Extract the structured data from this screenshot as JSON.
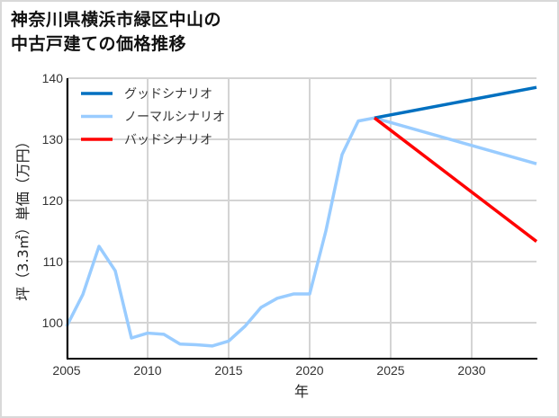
{
  "title_lines": [
    "神奈川県横浜市緑区中山の",
    "中古戸建ての価格推移"
  ],
  "chart_data": {
    "type": "line",
    "title": "神奈川県横浜市緑区中山の中古戸建ての価格推移",
    "xlabel": "年",
    "ylabel": "坪（3.3㎡）単価（万円）",
    "xlim": [
      2005,
      2034
    ],
    "ylim": [
      94.1,
      140
    ],
    "xticks": [
      2005,
      2010,
      2015,
      2020,
      2025,
      2030
    ],
    "yticks": [
      100,
      110,
      120,
      130,
      140
    ],
    "grid": true,
    "legend_position": "upper left",
    "series": [
      {
        "name": "グッドシナリオ",
        "color": "#0070c0",
        "x": [
          2024,
          2034
        ],
        "values": [
          133.5,
          138.5
        ]
      },
      {
        "name": "ノーマルシナリオ",
        "color": "#99ccff",
        "x": [
          2005,
          2006,
          2007,
          2008,
          2009,
          2010,
          2011,
          2012,
          2013,
          2014,
          2015,
          2016,
          2017,
          2018,
          2019,
          2020,
          2021,
          2022,
          2023,
          2024,
          2034
        ],
        "values": [
          99.4,
          104.6,
          112.5,
          108.5,
          97.5,
          98.3,
          98.1,
          96.5,
          96.4,
          96.2,
          97.0,
          99.4,
          102.5,
          104.0,
          104.7,
          104.7,
          115.0,
          127.5,
          133.0,
          133.5,
          126.0
        ]
      },
      {
        "name": "バッドシナリオ",
        "color": "#ff0000",
        "x": [
          2024,
          2034
        ],
        "values": [
          133.5,
          113.3
        ]
      }
    ]
  }
}
